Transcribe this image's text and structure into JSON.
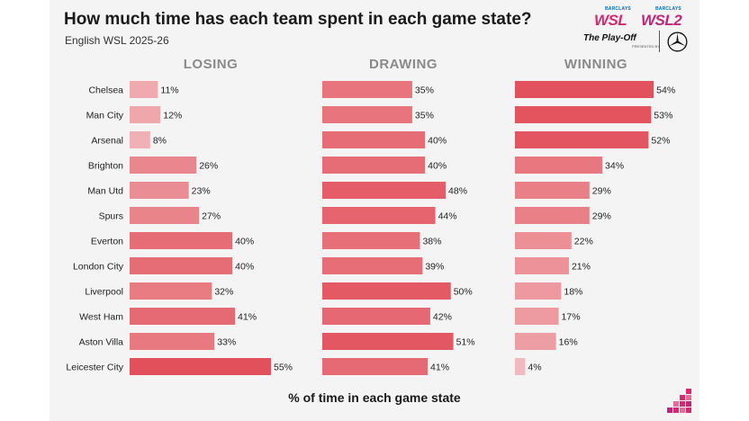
{
  "header": {
    "title": "How much time has each team spent in each game state?",
    "subtitle": "English WSL 2025-26"
  },
  "logos": {
    "barclays_1": "BARCLAYS",
    "wsl": "WSL",
    "barclays_2": "BARCLAYS",
    "wsl2": "WSL2",
    "playoff": "The Play-Off",
    "playoff_sub": "PRESENTED BY",
    "brand_icon": "mercedes-star-icon",
    "corner_icon": "pixel-steps-icon"
  },
  "colors": {
    "bar_light": "#f2c3c7",
    "bar_mid": "#ea838a",
    "bar_dark": "#e2505c",
    "header_gray": "#8a8a8a",
    "background": "#f4f4f4"
  },
  "chart_data": {
    "type": "bar",
    "orientation": "horizontal",
    "xlabel": "% of time in each game state",
    "unit": "%",
    "categories": [
      "Chelsea",
      "Man City",
      "Arsenal",
      "Brighton",
      "Man Utd",
      "Spurs",
      "Everton",
      "London City",
      "Liverpool",
      "West Ham",
      "Aston Villa",
      "Leicester City"
    ],
    "series": [
      {
        "name": "LOSING",
        "values": [
          11,
          12,
          8,
          26,
          23,
          27,
          40,
          40,
          32,
          41,
          33,
          55
        ]
      },
      {
        "name": "DRAWING",
        "values": [
          35,
          35,
          40,
          40,
          48,
          44,
          38,
          39,
          50,
          42,
          51,
          41
        ]
      },
      {
        "name": "WINNING",
        "values": [
          54,
          53,
          52,
          34,
          29,
          29,
          22,
          21,
          18,
          17,
          16,
          4
        ]
      }
    ],
    "xlim": [
      0,
      55
    ],
    "grid": false,
    "legend": "none"
  }
}
